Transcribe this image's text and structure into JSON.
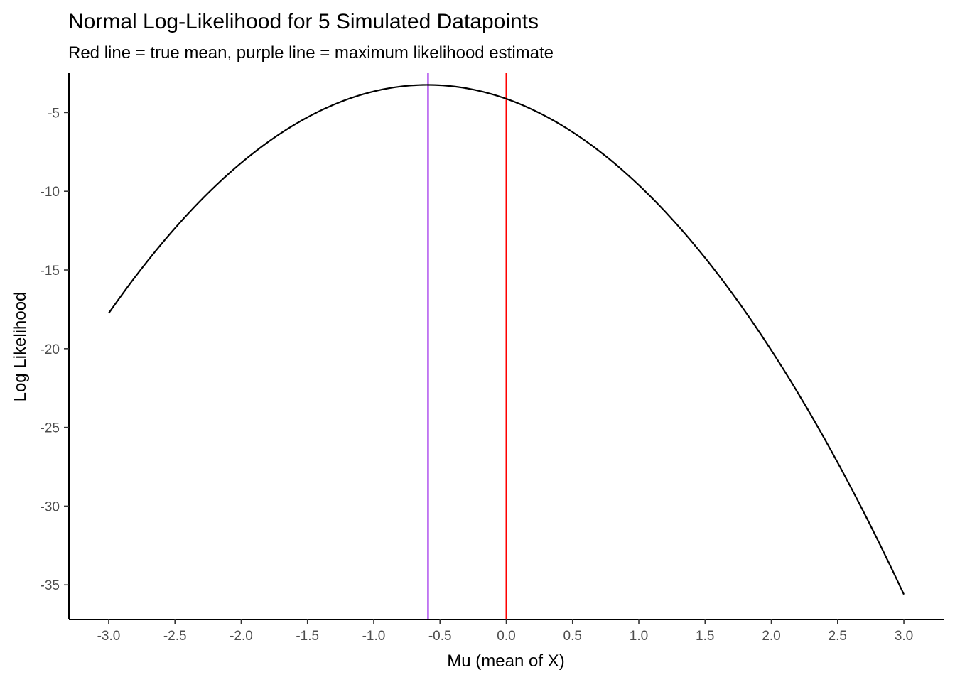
{
  "chart_data": {
    "type": "line",
    "title": "Normal Log-Likelihood for 5 Simulated Datapoints",
    "subtitle": "Red line = true mean, purple line = maximum likelihood estimate",
    "xlabel": "Mu (mean of X)",
    "ylabel": "Log Likelihood",
    "xlim": [
      -3.3,
      3.3
    ],
    "ylim": [
      -37.2,
      -2.5
    ],
    "x_ticks": [
      -3.0,
      -2.5,
      -2.0,
      -1.5,
      -1.0,
      -0.5,
      0.0,
      0.5,
      1.0,
      1.5,
      2.0,
      2.5,
      3.0
    ],
    "x_tick_labels": [
      "-3.0",
      "-2.5",
      "-2.0",
      "-1.5",
      "-1.0",
      "-0.5",
      "0.0",
      "0.5",
      "1.0",
      "1.5",
      "2.0",
      "2.5",
      "3.0"
    ],
    "y_ticks": [
      -35,
      -30,
      -25,
      -20,
      -15,
      -10,
      -5
    ],
    "y_tick_labels": [
      "-35",
      "-30",
      "-25",
      "-20",
      "-15",
      "-10",
      "-5"
    ],
    "grid": false,
    "series": [
      {
        "x": [
          -3.0,
          -2.5,
          -2.0,
          -1.5,
          -1.0,
          -0.6,
          -0.5,
          0.0,
          0.5,
          1.0,
          1.5,
          2.0,
          2.5,
          3.0
        ],
        "y": [
          -17.7,
          -12.4,
          -8.3,
          -5.3,
          -3.6,
          -3.2,
          -3.2,
          -4.1,
          -6.2,
          -9.6,
          -14.3,
          -20.3,
          -27.2,
          -35.5
        ],
        "color": "#000000"
      }
    ],
    "reference_lines": [
      {
        "x": -0.59,
        "color": "#8a00e6",
        "meaning": "purple"
      },
      {
        "x": 0.0,
        "color": "#ff0000",
        "meaning": "red"
      }
    ]
  }
}
